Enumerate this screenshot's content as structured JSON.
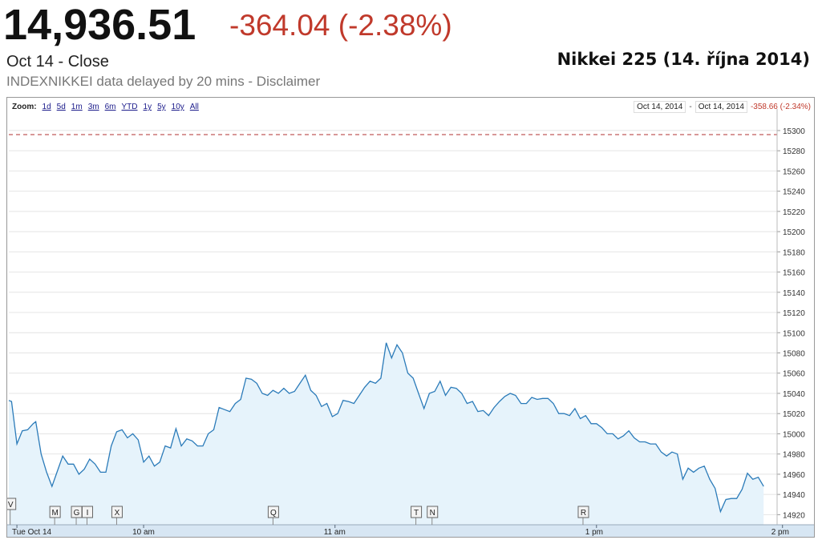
{
  "header": {
    "price": "14,936.51",
    "change": "-364.04 (-2.38%)",
    "close_label": "Oct 14 - Close",
    "source_line": "INDEXNIKKEI data delayed by 20 mins - Disclaimer",
    "chart_title": "Nikkei 225 (14. října 2014)",
    "change_color": "#c0392b"
  },
  "toolbar": {
    "zoom_label": "Zoom:",
    "zoom_options": [
      "1d",
      "5d",
      "1m",
      "3m",
      "6m",
      "YTD",
      "1y",
      "5y",
      "10y",
      "All"
    ],
    "range_from": "Oct 14, 2014",
    "range_sep": "-",
    "range_to": "Oct 14, 2014",
    "range_change": "-358.66 (-2.34%)"
  },
  "chart_data": {
    "type": "area",
    "xlabel": "",
    "ylabel": "",
    "x_ticks": [
      "Tue Oct 14",
      "10 am",
      "11 am",
      "1 pm",
      "2 pm"
    ],
    "y_ticks": [
      14920,
      14940,
      14960,
      14980,
      15000,
      15020,
      15040,
      15060,
      15080,
      15100,
      15120,
      15140,
      15160,
      15180,
      15200,
      15220,
      15240,
      15260,
      15280,
      15300
    ],
    "ylim": [
      14910,
      15315
    ],
    "reference_line": 15296,
    "grid": true,
    "colors": {
      "line": "#2b7bb9",
      "fill": "#e6f3fb",
      "reference": "#b03030"
    },
    "event_markers": [
      {
        "label": "V",
        "t": 0.5
      },
      {
        "label": "M",
        "t": 17
      },
      {
        "label": "G",
        "t": 25
      },
      {
        "label": "I",
        "t": 29
      },
      {
        "label": "X",
        "t": 40
      },
      {
        "label": "Q",
        "t": 98
      },
      {
        "label": "T",
        "t": 151
      },
      {
        "label": "N",
        "t": 157
      },
      {
        "label": "R",
        "t": 213
      }
    ],
    "note": "t = minutes after 9:00 (trading day)",
    "series": [
      {
        "values": [
          [
            0,
            15033
          ],
          [
            1,
            15032
          ],
          [
            3,
            14990
          ],
          [
            5,
            15003
          ],
          [
            7,
            15004
          ],
          [
            9,
            15010
          ],
          [
            10,
            15012
          ],
          [
            12,
            14980
          ],
          [
            14,
            14962
          ],
          [
            16,
            14948
          ],
          [
            18,
            14963
          ],
          [
            20,
            14978
          ],
          [
            22,
            14970
          ],
          [
            24,
            14970
          ],
          [
            26,
            14960
          ],
          [
            28,
            14965
          ],
          [
            30,
            14975
          ],
          [
            32,
            14970
          ],
          [
            34,
            14962
          ],
          [
            36,
            14962
          ],
          [
            38,
            14988
          ],
          [
            40,
            15002
          ],
          [
            42,
            15004
          ],
          [
            44,
            14996
          ],
          [
            46,
            15000
          ],
          [
            48,
            14994
          ],
          [
            50,
            14972
          ],
          [
            52,
            14978
          ],
          [
            54,
            14968
          ],
          [
            56,
            14972
          ],
          [
            58,
            14988
          ],
          [
            60,
            14986
          ],
          [
            62,
            15005
          ],
          [
            64,
            14988
          ],
          [
            66,
            14995
          ],
          [
            68,
            14993
          ],
          [
            70,
            14988
          ],
          [
            72,
            14988
          ],
          [
            74,
            15000
          ],
          [
            76,
            15004
          ],
          [
            78,
            15026
          ],
          [
            80,
            15024
          ],
          [
            82,
            15022
          ],
          [
            84,
            15030
          ],
          [
            86,
            15034
          ],
          [
            88,
            15055
          ],
          [
            90,
            15054
          ],
          [
            92,
            15050
          ],
          [
            94,
            15040
          ],
          [
            96,
            15038
          ],
          [
            98,
            15043
          ],
          [
            100,
            15040
          ],
          [
            102,
            15045
          ],
          [
            104,
            15040
          ],
          [
            106,
            15042
          ],
          [
            108,
            15050
          ],
          [
            110,
            15058
          ],
          [
            112,
            15043
          ],
          [
            114,
            15038
          ],
          [
            116,
            15027
          ],
          [
            118,
            15030
          ],
          [
            120,
            15017
          ],
          [
            122,
            15020
          ],
          [
            124,
            15033
          ],
          [
            126,
            15032
          ],
          [
            128,
            15030
          ],
          [
            130,
            15038
          ],
          [
            132,
            15046
          ],
          [
            134,
            15052
          ],
          [
            136,
            15050
          ],
          [
            138,
            15055
          ],
          [
            140,
            15090
          ],
          [
            142,
            15075
          ],
          [
            144,
            15088
          ],
          [
            146,
            15080
          ],
          [
            148,
            15060
          ],
          [
            150,
            15055
          ],
          [
            152,
            15040
          ],
          [
            154,
            15025
          ],
          [
            156,
            15040
          ],
          [
            158,
            15042
          ],
          [
            160,
            15052
          ],
          [
            162,
            15038
          ],
          [
            164,
            15046
          ],
          [
            166,
            15045
          ],
          [
            168,
            15040
          ],
          [
            170,
            15030
          ],
          [
            172,
            15032
          ],
          [
            174,
            15022
          ],
          [
            176,
            15023
          ],
          [
            178,
            15018
          ],
          [
            180,
            15026
          ],
          [
            182,
            15032
          ],
          [
            184,
            15037
          ],
          [
            186,
            15040
          ],
          [
            188,
            15038
          ],
          [
            190,
            15030
          ],
          [
            192,
            15030
          ],
          [
            194,
            15036
          ],
          [
            196,
            15034
          ],
          [
            198,
            15035
          ],
          [
            200,
            15035
          ],
          [
            202,
            15030
          ],
          [
            204,
            15020
          ],
          [
            206,
            15020
          ],
          [
            208,
            15018
          ],
          [
            210,
            15025
          ],
          [
            212,
            15015
          ],
          [
            214,
            15018
          ],
          [
            216,
            15010
          ],
          [
            218,
            15010
          ],
          [
            220,
            15006
          ],
          [
            222,
            15000
          ],
          [
            224,
            15000
          ],
          [
            226,
            14995
          ],
          [
            228,
            14998
          ],
          [
            230,
            15003
          ],
          [
            232,
            14996
          ],
          [
            234,
            14992
          ],
          [
            236,
            14992
          ],
          [
            238,
            14990
          ],
          [
            240,
            14990
          ],
          [
            242,
            14982
          ],
          [
            244,
            14978
          ],
          [
            246,
            14982
          ],
          [
            248,
            14980
          ],
          [
            250,
            14955
          ],
          [
            252,
            14966
          ],
          [
            254,
            14962
          ],
          [
            256,
            14966
          ],
          [
            258,
            14968
          ],
          [
            260,
            14955
          ],
          [
            262,
            14946
          ],
          [
            264,
            14923
          ],
          [
            266,
            14935
          ],
          [
            268,
            14936
          ],
          [
            270,
            14936
          ],
          [
            272,
            14945
          ],
          [
            274,
            14961
          ],
          [
            276,
            14955
          ],
          [
            278,
            14957
          ],
          [
            280,
            14948
          ]
        ]
      }
    ]
  }
}
